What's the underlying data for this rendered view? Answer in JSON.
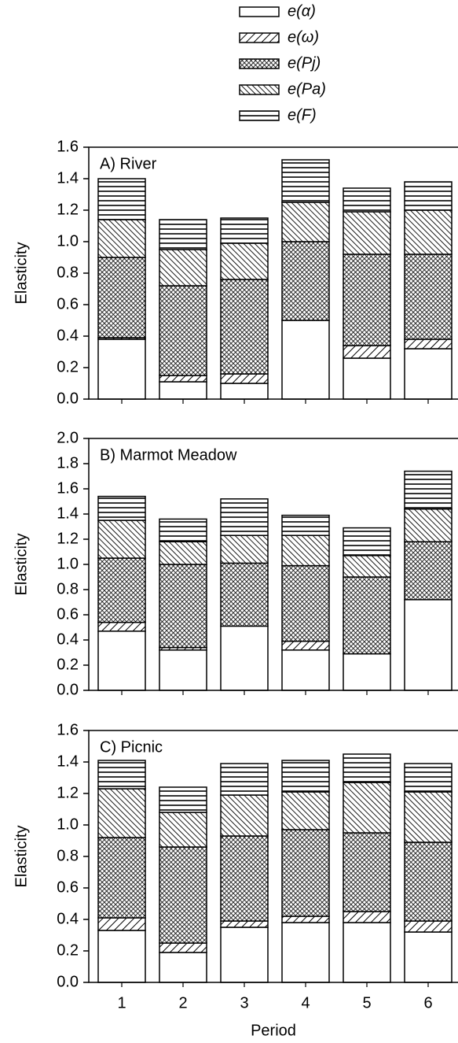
{
  "legend": [
    {
      "name": "e(α)",
      "pattern": "white"
    },
    {
      "name": "e(ω)",
      "pattern": "diag"
    },
    {
      "name": "e(Pj)",
      "pattern": "cross"
    },
    {
      "name": "e(Pa)",
      "pattern": "backdiag"
    },
    {
      "name": "e(F)",
      "pattern": "horiz"
    }
  ],
  "chart_data": [
    {
      "type": "stacked-bar",
      "title": "A) River",
      "ylabel": "Elasticity",
      "ylim": [
        0,
        1.6
      ],
      "yticks": [
        {
          "value": 0,
          "label": "0.0"
        },
        0.2,
        0.4,
        0.6,
        0.8,
        {
          "value": 1,
          "label": "1.0"
        },
        1.2,
        1.4,
        1.6
      ],
      "series": [
        {
          "values": [
            0.38,
            0.11,
            0.1,
            0.5,
            0.26,
            0.32
          ]
        },
        {
          "values": [
            0.01,
            0.04,
            0.06,
            0.0,
            0.08,
            0.06
          ]
        },
        {
          "values": [
            0.51,
            0.57,
            0.6,
            0.5,
            0.58,
            0.54
          ]
        },
        {
          "values": [
            0.24,
            0.23,
            0.23,
            0.25,
            0.27,
            0.28
          ]
        },
        {
          "values": [
            0.26,
            0.19,
            0.16,
            0.27,
            0.15,
            0.18
          ]
        }
      ]
    },
    {
      "type": "stacked-bar",
      "title": "B) Marmot Meadow",
      "ylabel": "Elasticity",
      "ylim": [
        0,
        2
      ],
      "yticks": [
        {
          "value": 0,
          "label": "0.0"
        },
        0.2,
        0.4,
        0.6,
        0.8,
        {
          "value": 1,
          "label": "1.0"
        },
        1.2,
        1.4,
        1.6,
        1.8,
        {
          "value": 2,
          "label": "2.0"
        }
      ],
      "series": [
        {
          "values": [
            0.47,
            0.32,
            0.51,
            0.32,
            0.29,
            0.72
          ]
        },
        {
          "values": [
            0.07,
            0.02,
            0.0,
            0.07,
            0.0,
            0.0
          ]
        },
        {
          "values": [
            0.51,
            0.66,
            0.5,
            0.6,
            0.61,
            0.46
          ]
        },
        {
          "values": [
            0.3,
            0.18,
            0.22,
            0.24,
            0.17,
            0.26
          ]
        },
        {
          "values": [
            0.19,
            0.18,
            0.29,
            0.16,
            0.22,
            0.3
          ]
        }
      ]
    },
    {
      "type": "stacked-bar",
      "title": "C) Picnic",
      "ylabel": "Elasticity",
      "xlabel": "Period",
      "categories": [
        "1",
        "2",
        "3",
        "4",
        "5",
        "6"
      ],
      "ylim": [
        0,
        1.6
      ],
      "yticks": [
        {
          "value": 0,
          "label": "0.0"
        },
        0.2,
        0.4,
        0.6,
        0.8,
        {
          "value": 1,
          "label": "1.0"
        },
        1.2,
        1.4,
        1.6
      ],
      "series": [
        {
          "values": [
            0.33,
            0.19,
            0.35,
            0.38,
            0.38,
            0.32
          ]
        },
        {
          "values": [
            0.08,
            0.06,
            0.04,
            0.04,
            0.07,
            0.07
          ]
        },
        {
          "values": [
            0.51,
            0.61,
            0.54,
            0.55,
            0.5,
            0.5
          ]
        },
        {
          "values": [
            0.31,
            0.22,
            0.26,
            0.24,
            0.32,
            0.32
          ]
        },
        {
          "values": [
            0.18,
            0.16,
            0.2,
            0.2,
            0.18,
            0.18
          ]
        }
      ]
    }
  ]
}
